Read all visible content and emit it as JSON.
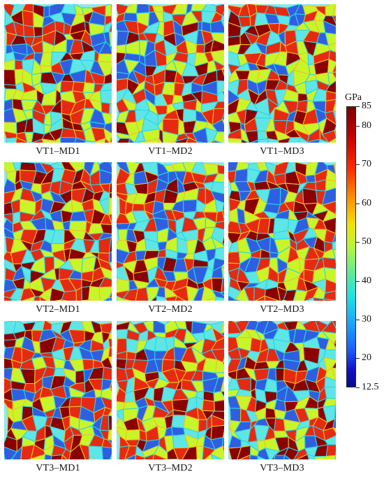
{
  "figure": {
    "rows": [
      {
        "captions": [
          "VT1–MD1",
          "VT1–MD2",
          "VT1–MD3"
        ]
      },
      {
        "captions": [
          "VT2–MD1",
          "VT2–MD2",
          "VT2–MD3"
        ]
      },
      {
        "captions": [
          "VT3–MD1",
          "VT3–MD2",
          "VT3–MD3"
        ]
      }
    ]
  },
  "colorbar": {
    "unit": "GPa",
    "min": 12.5,
    "max": 85,
    "ticks": [
      "85",
      "80",
      "70",
      "60",
      "50",
      "40",
      "30",
      "20",
      "12.5"
    ],
    "colormap": "jet",
    "colors": [
      "#7a0000",
      "#c00000",
      "#ff2a00",
      "#ff8c00",
      "#f2e200",
      "#b8f53c",
      "#59eaa0",
      "#1ee0e6",
      "#1aa0ff",
      "#1a5cff",
      "#1010c8",
      "#0a0a8c"
    ]
  },
  "grain_palette": [
    "#8b0000",
    "#e62a12",
    "#c8f52a",
    "#2f5fe0",
    "#5ee6e6"
  ],
  "grain_boundary_colors": [
    "#f0c020",
    "#2ad4e6"
  ]
}
